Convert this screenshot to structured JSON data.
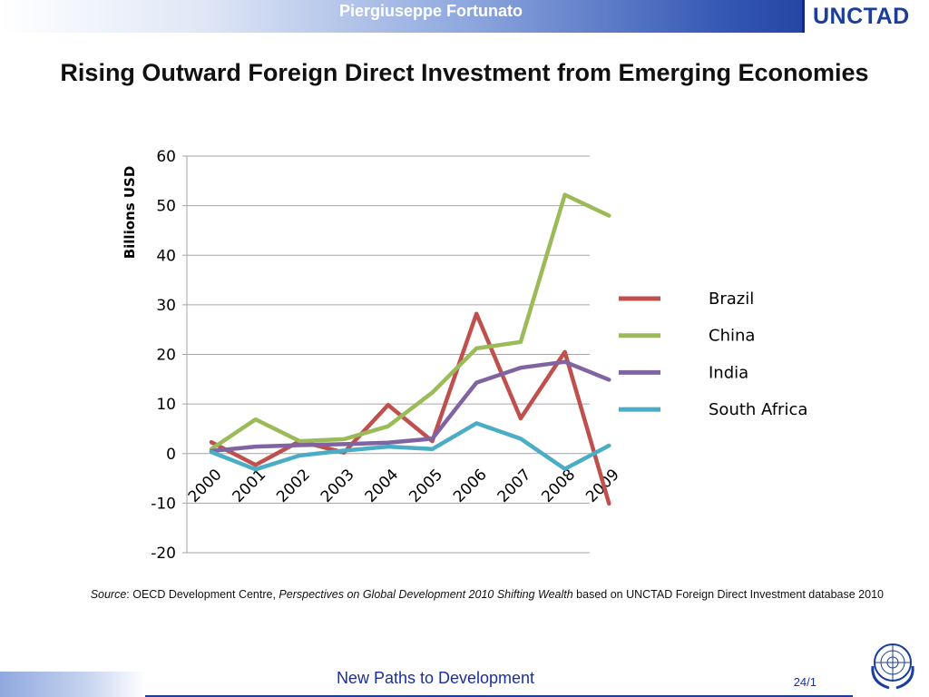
{
  "header": {
    "presenter": "Piergiuseppe Fortunato",
    "logo": "UNCTAD"
  },
  "slide": {
    "title": "Rising Outward Foreign Direct Investment  from Emerging Economies"
  },
  "chart_data": {
    "type": "line",
    "title": "",
    "xlabel": "",
    "ylabel": "Billions USD",
    "x": [
      "2000",
      "2001",
      "2002",
      "2003",
      "2004",
      "2005",
      "2006",
      "2007",
      "2008",
      "2009"
    ],
    "ylim": [
      -20,
      60
    ],
    "yticks": [
      60,
      50,
      40,
      30,
      20,
      10,
      0,
      -10,
      -20
    ],
    "grid": "horizontal",
    "legend_position": "right",
    "series": [
      {
        "name": "Brazil",
        "color": "#c0504d",
        "values": [
          2.3,
          -2.3,
          2.5,
          0.2,
          9.8,
          2.5,
          28.2,
          7.1,
          20.5,
          -10.1
        ]
      },
      {
        "name": "China",
        "color": "#9bbb59",
        "values": [
          0.9,
          6.9,
          2.5,
          2.9,
          5.5,
          12.3,
          21.2,
          22.5,
          52.2,
          48.0
        ]
      },
      {
        "name": "India",
        "color": "#8064a2",
        "values": [
          0.5,
          1.4,
          1.7,
          1.9,
          2.2,
          3.0,
          14.3,
          17.3,
          18.5,
          14.9
        ]
      },
      {
        "name": "South Africa",
        "color": "#4bacc6",
        "values": [
          0.3,
          -3.2,
          -0.4,
          0.6,
          1.4,
          0.9,
          6.1,
          3.0,
          -3.1,
          1.6
        ]
      }
    ]
  },
  "source_note": {
    "label": "Source",
    "text1": ": OECD Development Centre, ",
    "publication": "Perspectives on Global Development 2010 Shifting Wealth",
    "text2": " based on UNCTAD Foreign Direct Investment database 2010"
  },
  "footer": {
    "tagline": "New Paths to Development",
    "page": "24/1"
  },
  "colors": {
    "brand_blue": "#1a3e99",
    "footer_text": "#1a2ea0"
  },
  "icons": {
    "logo": "unctad-logo",
    "emblem": "un-emblem-icon"
  }
}
